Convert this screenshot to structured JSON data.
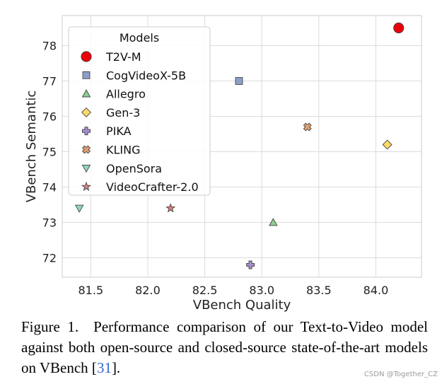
{
  "chart_data": {
    "type": "scatter",
    "xlabel": "VBench Quality",
    "ylabel": "VBench Semantic",
    "xlim": [
      81.25,
      84.4
    ],
    "ylim": [
      71.45,
      78.85
    ],
    "xticks": [
      "81.5",
      "82.0",
      "82.5",
      "83.0",
      "83.5",
      "84.0"
    ],
    "xtick_values": [
      81.5,
      82.0,
      82.5,
      83.0,
      83.5,
      84.0
    ],
    "yticks": [
      "72",
      "73",
      "74",
      "75",
      "76",
      "77",
      "78"
    ],
    "ytick_values": [
      72,
      73,
      74,
      75,
      76,
      77,
      78
    ],
    "grid": true,
    "legend": {
      "title": "Models",
      "placement": "top-left"
    },
    "series": [
      {
        "name": "T2V-M",
        "marker": "circle",
        "color": "#e8000b",
        "x": 84.2,
        "y": 78.5
      },
      {
        "name": "CogVideoX-5B",
        "marker": "square",
        "color": "#8da0cb",
        "x": 82.8,
        "y": 77.0
      },
      {
        "name": "Allegro",
        "marker": "triangle-up",
        "color": "#8ccf8f",
        "x": 83.1,
        "y": 73.0
      },
      {
        "name": "Gen-3",
        "marker": "diamond",
        "color": "#ffd966",
        "x": 84.1,
        "y": 75.2
      },
      {
        "name": "PIKA",
        "marker": "plus",
        "color": "#a78bcf",
        "x": 82.9,
        "y": 71.8
      },
      {
        "name": "KLING",
        "marker": "x",
        "color": "#e0a070",
        "x": 83.4,
        "y": 75.7
      },
      {
        "name": "OpenSora",
        "marker": "triangle-down",
        "color": "#8fd6c2",
        "x": 81.4,
        "y": 73.4
      },
      {
        "name": "VideoCrafter-2.0",
        "marker": "star",
        "color": "#e08080",
        "x": 82.2,
        "y": 73.4
      }
    ]
  },
  "caption": {
    "figure_label": "Figure 1.",
    "text_before_cite": "Performance comparison of our Text-to-Video model against both open-source and closed-source state-of-the-art models on VBench [",
    "cite": "31",
    "text_after_cite": "]."
  },
  "watermark": "CSDN @Together_CZ"
}
